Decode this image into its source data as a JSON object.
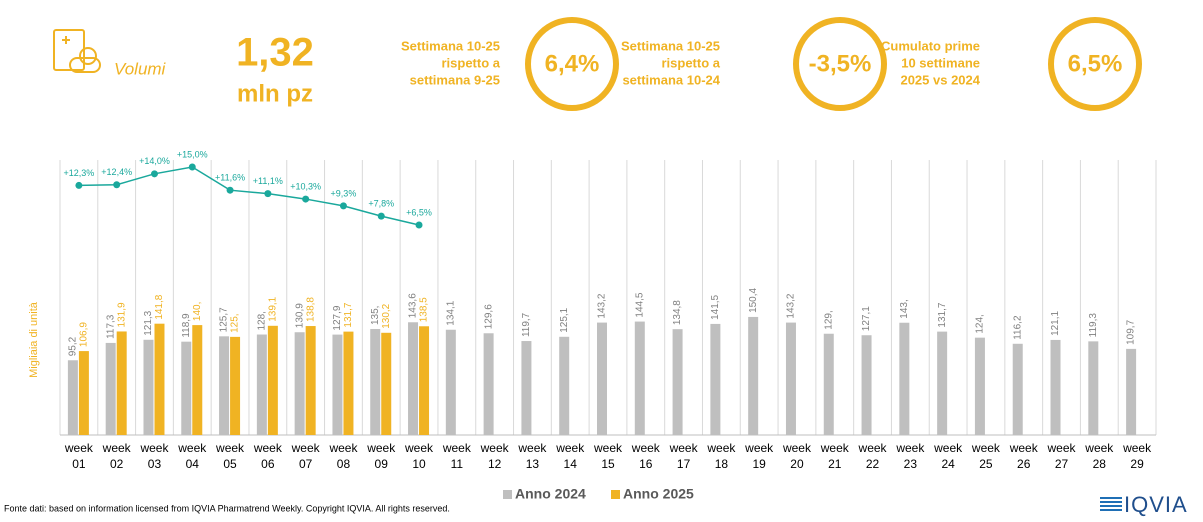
{
  "header": {
    "section": "Volumi",
    "value": "1,32",
    "unit": "mln pz",
    "kpis": [
      {
        "lines": [
          "Settimana 10-25",
          "rispetto a",
          "settimana 9-25"
        ],
        "value": "6,4%"
      },
      {
        "lines": [
          "Settimana 10-25",
          "rispetto a",
          "settimana 10-24"
        ],
        "value": "-3,5%"
      },
      {
        "lines": [
          "Cumulato prime",
          "10 settimane",
          "2025 vs 2024"
        ],
        "value": "6,5%"
      }
    ]
  },
  "chart_data": {
    "type": "bar",
    "y_label": "Migliaia di unità",
    "categories": [
      "week 01",
      "week 02",
      "week 03",
      "week 04",
      "week 05",
      "week 06",
      "week 07",
      "week 08",
      "week 09",
      "week 10",
      "week 11",
      "week 12",
      "week 13",
      "week 14",
      "week 15",
      "week 16",
      "week 17",
      "week 18",
      "week 19",
      "week 20",
      "week 21",
      "week 22",
      "week 23",
      "week 24",
      "week 25",
      "week 26",
      "week 27",
      "week 28",
      "week 29"
    ],
    "series": [
      {
        "name": "Anno 2024",
        "color": "#bfbfbf",
        "values": [
          95.2,
          117.3,
          121.3,
          118.9,
          125.7,
          128,
          130.9,
          127.9,
          135,
          143.6,
          134.1,
          129.6,
          119.7,
          125.1,
          143.2,
          144.5,
          134.8,
          141.5,
          150.4,
          143.2,
          129,
          127.1,
          143,
          131.7,
          124,
          116.2,
          121.1,
          119.3,
          109.7
        ],
        "value_labels": [
          "95,2",
          "117,3",
          "121,3",
          "118,9",
          "125,7",
          "128,",
          "130,9",
          "127,9",
          "135,",
          "143,6",
          "134,1",
          "129,6",
          "119,7",
          "125,1",
          "143,2",
          "144,5",
          "134,8",
          "141,5",
          "150,4",
          "143,2",
          "129,",
          "127,1",
          "143,",
          "131,7",
          "124,",
          "116,2",
          "121,1",
          "119,3",
          "109,7"
        ]
      },
      {
        "name": "Anno 2025",
        "color": "#f0b323",
        "values": [
          106.9,
          131.9,
          141.8,
          140,
          125,
          139.1,
          138.8,
          131.7,
          130.2,
          138.5,
          null,
          null,
          null,
          null,
          null,
          null,
          null,
          null,
          null,
          null,
          null,
          null,
          null,
          null,
          null,
          null,
          null,
          null,
          null
        ],
        "value_labels": [
          "106,9",
          "131,9",
          "141,8",
          "140,",
          "125,",
          "139,1",
          "138,8",
          "131,7",
          "130,2",
          "138,5",
          null,
          null,
          null,
          null,
          null,
          null,
          null,
          null,
          null,
          null,
          null,
          null,
          null,
          null,
          null,
          null,
          null,
          null,
          null
        ]
      }
    ],
    "growth": {
      "color": "#1aa89c",
      "values": [
        12.3,
        12.4,
        14.0,
        15.0,
        11.6,
        11.1,
        10.3,
        9.3,
        7.8,
        6.5
      ],
      "value_labels": [
        "+12,3%",
        "+12,4%",
        "+14,0%",
        "+15,0%",
        "+11,6%",
        "+11,1%",
        "+10,3%",
        "+9,3%",
        "+7,8%",
        "+6,5%"
      ]
    },
    "source": "Fonte dati: based on information licensed from IQVIA Pharmatrend Weekly. Copyright IQVIA. All rights reserved.",
    "logo": "IQVIA"
  }
}
